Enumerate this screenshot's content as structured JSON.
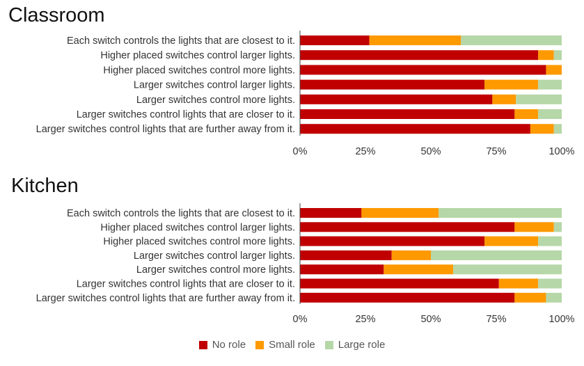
{
  "colors": {
    "no_role": "#c00000",
    "small_role": "#ff9900",
    "large_role": "#b6d7a8"
  },
  "legend": [
    {
      "label": "No role",
      "color": "#c00000"
    },
    {
      "label": "Small role",
      "color": "#ff9900"
    },
    {
      "label": "Large role",
      "color": "#b6d7a8"
    }
  ],
  "chart_data": [
    {
      "type": "bar",
      "orientation": "horizontal",
      "stacked": true,
      "title": "Classroom",
      "categories": [
        "Each switch controls the lights that are closest to it.",
        "Higher placed switches control larger lights.",
        "Higher placed switches control more lights.",
        "Larger switches control larger lights.",
        "Larger switches control more lights.",
        "Larger switches control lights that are closer to it.",
        "Larger switches control lights that are further away from it."
      ],
      "series": [
        {
          "name": "No role",
          "values": [
            0.265,
            0.91,
            0.94,
            0.705,
            0.735,
            0.82,
            0.88
          ]
        },
        {
          "name": "Small role",
          "values": [
            0.35,
            0.06,
            0.06,
            0.205,
            0.09,
            0.09,
            0.09
          ]
        },
        {
          "name": "Large role",
          "values": [
            0.385,
            0.03,
            0.0,
            0.09,
            0.175,
            0.09,
            0.03
          ]
        }
      ],
      "xlim": [
        0,
        1
      ],
      "xticks": [
        "0%",
        "25%",
        "50%",
        "75%",
        "100%"
      ],
      "legend_position": "bottom"
    },
    {
      "type": "bar",
      "orientation": "horizontal",
      "stacked": true,
      "title": "Kitchen",
      "categories": [
        "Each switch controls the lights that are closest to it.",
        "Higher placed switches control larger lights.",
        "Higher placed switches control more lights.",
        "Larger switches control larger lights.",
        "Larger switches control more lights.",
        "Larger switches control lights that are closer to it.",
        "Larger switches control lights that are further away from it."
      ],
      "series": [
        {
          "name": "No role",
          "values": [
            0.235,
            0.82,
            0.705,
            0.35,
            0.32,
            0.76,
            0.82
          ]
        },
        {
          "name": "Small role",
          "values": [
            0.295,
            0.15,
            0.205,
            0.15,
            0.265,
            0.15,
            0.12
          ]
        },
        {
          "name": "Large role",
          "values": [
            0.47,
            0.03,
            0.09,
            0.5,
            0.415,
            0.09,
            0.06
          ]
        }
      ],
      "xlim": [
        0,
        1
      ],
      "xticks": [
        "0%",
        "25%",
        "50%",
        "75%",
        "100%"
      ],
      "legend_position": "bottom"
    }
  ]
}
